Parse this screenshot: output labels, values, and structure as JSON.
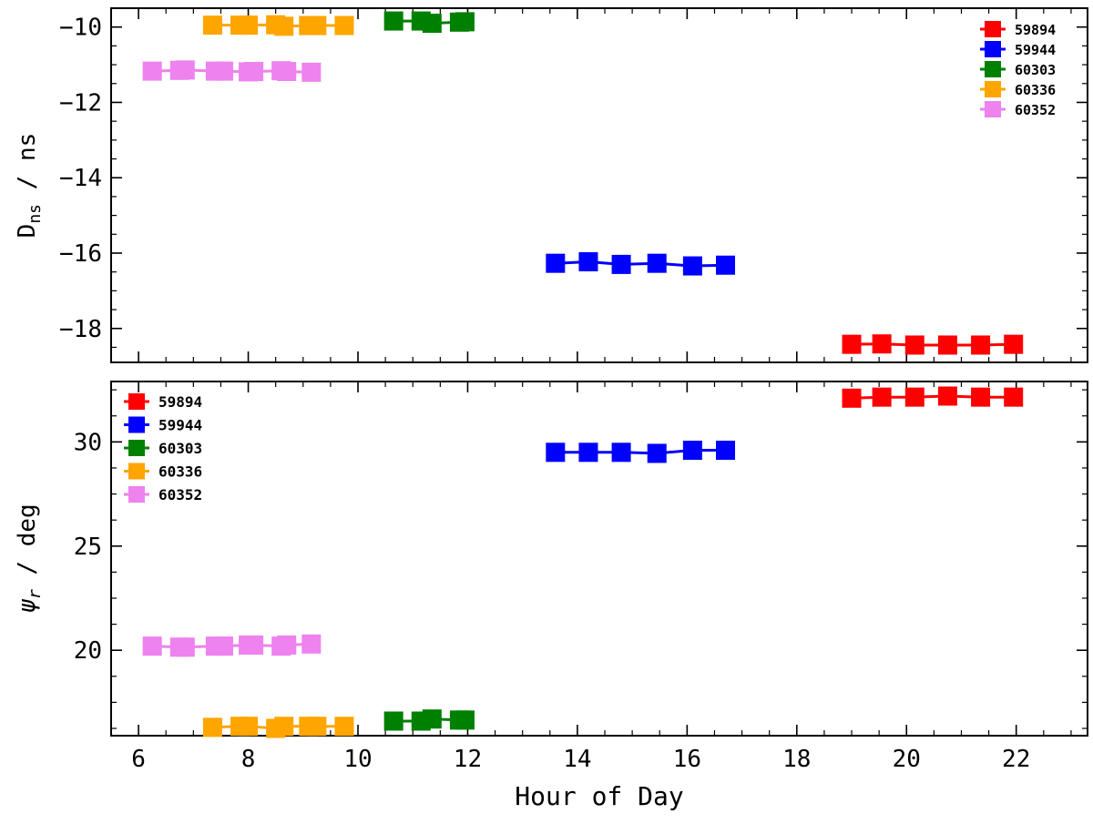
{
  "chart_data": [
    {
      "type": "line",
      "title": "",
      "xlabel": "Hour of Day",
      "ylabel_main": "D",
      "ylabel_sub": "ns",
      "ylabel_unit": " / ns",
      "xlim": [
        5.5,
        23.3
      ],
      "ylim": [
        -18.9,
        -9.5
      ],
      "xticks": [
        6,
        8,
        10,
        12,
        14,
        16,
        18,
        20,
        22
      ],
      "yticks": [
        -18,
        -16,
        -14,
        -12,
        -10
      ],
      "legend_position": "upper right",
      "grid": false,
      "series": [
        {
          "name": "59894",
          "color": "#ff0000",
          "x": [
            19.0,
            19.55,
            20.15,
            20.75,
            21.35,
            21.95
          ],
          "y": [
            -18.42,
            -18.41,
            -18.44,
            -18.44,
            -18.44,
            -18.42
          ]
        },
        {
          "name": "59944",
          "color": "#0000ff",
          "x": [
            13.6,
            14.2,
            14.8,
            15.45,
            16.1,
            16.7
          ],
          "y": [
            -16.27,
            -16.23,
            -16.3,
            -16.27,
            -16.34,
            -16.32
          ]
        },
        {
          "name": "60303",
          "color": "#008000",
          "x": [
            10.65,
            11.15,
            11.35,
            11.85,
            11.95
          ],
          "y": [
            -9.84,
            -9.84,
            -9.9,
            -9.87,
            -9.86
          ]
        },
        {
          "name": "60336",
          "color": "#ffa500",
          "x": [
            7.35,
            7.85,
            8.0,
            8.5,
            8.65,
            9.1,
            9.25,
            9.75
          ],
          "y": [
            -9.95,
            -9.95,
            -9.95,
            -9.94,
            -9.98,
            -9.96,
            -9.96,
            -9.96
          ]
        },
        {
          "name": "60352",
          "color": "#ee82ee",
          "x": [
            6.25,
            6.75,
            6.85,
            7.4,
            7.55,
            8.0,
            8.1,
            8.6,
            8.7,
            9.15
          ],
          "y": [
            -11.17,
            -11.15,
            -11.14,
            -11.17,
            -11.17,
            -11.19,
            -11.18,
            -11.16,
            -11.18,
            -11.2
          ]
        }
      ]
    },
    {
      "type": "line",
      "title": "",
      "xlabel": "Hour of Day",
      "ylabel_main": "ψ",
      "ylabel_sub": "r",
      "ylabel_unit": " / deg",
      "xlim": [
        5.5,
        23.3
      ],
      "ylim": [
        15.9,
        32.9
      ],
      "xticks": [
        6,
        8,
        10,
        12,
        14,
        16,
        18,
        20,
        22
      ],
      "yticks": [
        20,
        25,
        30
      ],
      "legend_position": "upper left",
      "grid": false,
      "series": [
        {
          "name": "59894",
          "color": "#ff0000",
          "x": [
            19.0,
            19.55,
            20.15,
            20.75,
            21.35,
            21.95
          ],
          "y": [
            32.1,
            32.15,
            32.15,
            32.2,
            32.15,
            32.15
          ]
        },
        {
          "name": "59944",
          "color": "#0000ff",
          "x": [
            13.6,
            14.2,
            14.8,
            15.45,
            16.1,
            16.7
          ],
          "y": [
            29.5,
            29.5,
            29.5,
            29.45,
            29.6,
            29.6
          ]
        },
        {
          "name": "60303",
          "color": "#008000",
          "x": [
            10.65,
            11.15,
            11.35,
            11.85,
            11.95
          ],
          "y": [
            16.6,
            16.6,
            16.7,
            16.65,
            16.65
          ]
        },
        {
          "name": "60336",
          "color": "#ffa500",
          "x": [
            7.35,
            7.85,
            8.0,
            8.5,
            8.65,
            9.1,
            9.25,
            9.75
          ],
          "y": [
            16.3,
            16.35,
            16.35,
            16.25,
            16.35,
            16.35,
            16.35,
            16.35
          ]
        },
        {
          "name": "60352",
          "color": "#ee82ee",
          "x": [
            6.25,
            6.75,
            6.85,
            7.4,
            7.55,
            8.0,
            8.1,
            8.6,
            8.7,
            9.15
          ],
          "y": [
            20.2,
            20.15,
            20.15,
            20.2,
            20.2,
            20.25,
            20.25,
            20.2,
            20.25,
            20.3
          ]
        }
      ]
    }
  ]
}
